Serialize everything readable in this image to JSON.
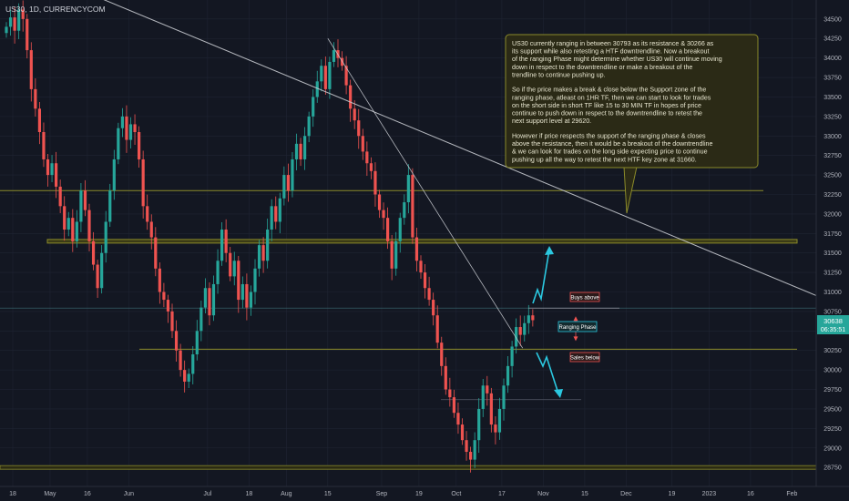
{
  "header": {
    "symbol_label": "US30, 1D, CURRENCYCOM"
  },
  "colors": {
    "background": "#131722",
    "up": "#26a69a",
    "down": "#ef5350",
    "grid": "#1f2433",
    "axis_text": "#b2b5be",
    "level_line": "#8b8b2a",
    "trend_line": "#cfd2d8",
    "arrow": "#2bc8e0",
    "note_bg": "#2b2a16",
    "note_border": "#8b8b2a",
    "price_badge": "#26a69a"
  },
  "price_badge": {
    "price": "30638",
    "countdown": "06:35:51"
  },
  "annotation": {
    "paragraphs": [
      "US30 currently ranging in between 30793 as its resistance & 30266 as its support while also retesting a HTF downtrendline. Now a breakout of the ranging Phase might determine whether US30 will continue moving down in respect to the downtrendline or make a breakout of the trendline to continue pushing up.",
      "So if the price makes a break & close below the Support zone of the ranging phase, atleast on 1HR TF, then we can start to look for trades on the short side in short TF like 15 to 30 MIN TF in hopes of price continue to push down in respect to the downtrendline to retest the next support level at 29620.",
      "However if price respects the support of the ranging phase & closes above the resistance, then it would be a breakout of the downtrendline & we can look for trades on the long side expecting price to continue pushing up all the way to retest the next HTF key zone at 31660."
    ]
  },
  "labels": {
    "buys": "Buys above",
    "ranging": "Ranging Phase",
    "sales": "Sales below"
  },
  "chart_data": {
    "type": "candlestick",
    "title": "US30, 1D, CURRENCYCOM",
    "ylim": [
      28600,
      34650
    ],
    "y_ticks": [
      28750,
      29000,
      29250,
      29500,
      29750,
      30000,
      30250,
      30500,
      30750,
      31000,
      31250,
      31500,
      31750,
      32000,
      32250,
      32500,
      32750,
      33000,
      33250,
      33500,
      33750,
      34000,
      34250,
      34500
    ],
    "x_ticks": [
      {
        "label": "18",
        "i": 0
      },
      {
        "label": "May",
        "i": 9
      },
      {
        "label": "16",
        "i": 18
      },
      {
        "label": "Jun",
        "i": 28
      },
      {
        "label": "Jul",
        "i": 47
      },
      {
        "label": "18",
        "i": 57
      },
      {
        "label": "Aug",
        "i": 66
      },
      {
        "label": "15",
        "i": 76
      },
      {
        "label": "Sep",
        "i": 89
      },
      {
        "label": "19",
        "i": 98
      },
      {
        "label": "Oct",
        "i": 107
      },
      {
        "label": "17",
        "i": 118
      },
      {
        "label": "Nov",
        "i": 128
      },
      {
        "label": "15",
        "i": 138
      },
      {
        "label": "Dec",
        "i": 148
      },
      {
        "label": "19",
        "i": 159
      },
      {
        "label": "2023",
        "i": 168
      },
      {
        "label": "16",
        "i": 178
      },
      {
        "label": "Feb",
        "i": 188
      }
    ],
    "candles_close": [
      34400,
      34520,
      34350,
      34620,
      34500,
      34100,
      33600,
      33350,
      33050,
      32700,
      32500,
      32650,
      32350,
      32100,
      31800,
      31950,
      31650,
      31900,
      32300,
      32050,
      31650,
      31350,
      31050,
      31500,
      31900,
      32300,
      32700,
      33100,
      33250,
      32950,
      33150,
      33050,
      32700,
      32100,
      31900,
      31700,
      31300,
      31000,
      30900,
      30750,
      30500,
      30250,
      30000,
      29850,
      29950,
      30200,
      30500,
      30800,
      31050,
      30700,
      31100,
      31400,
      31800,
      31500,
      31200,
      31400,
      30900,
      31100,
      30800,
      31000,
      31300,
      31600,
      31400,
      31800,
      32100,
      31900,
      32200,
      32500,
      32300,
      32700,
      32900,
      32700,
      33000,
      33250,
      33500,
      33700,
      33900,
      33600,
      33950,
      34100,
      34000,
      33900,
      33650,
      33350,
      33200,
      33000,
      32800,
      32650,
      32550,
      32250,
      32050,
      31950,
      31650,
      31300,
      31650,
      31950,
      32150,
      32500,
      31700,
      31400,
      31250,
      31050,
      30900,
      30700,
      30350,
      30050,
      29750,
      29650,
      29450,
      29300,
      29100,
      28950,
      28850,
      29100,
      29500,
      29800,
      29700,
      29300,
      29200,
      29500,
      29800,
      30050,
      30300,
      30550,
      30450,
      30600,
      30700,
      30638
    ],
    "levels": [
      {
        "name": "htf-key-zone-upper",
        "price": 32300
      },
      {
        "name": "htf-key-zone",
        "price": 31650
      },
      {
        "name": "ranging-resistance",
        "price": 30793
      },
      {
        "name": "ranging-support",
        "price": 30266
      },
      {
        "name": "next-support",
        "price": 29620
      },
      {
        "name": "major-support",
        "price": 28750
      }
    ],
    "trendlines": [
      {
        "name": "htf-downtrendline",
        "from": {
          "i": 8,
          "price": 35100
        },
        "to": {
          "i": 196,
          "price": 30950
        }
      },
      {
        "name": "short-downtrendline",
        "from": {
          "i": 78,
          "price": 34250
        },
        "to": {
          "i": 125,
          "price": 30280
        }
      }
    ]
  }
}
